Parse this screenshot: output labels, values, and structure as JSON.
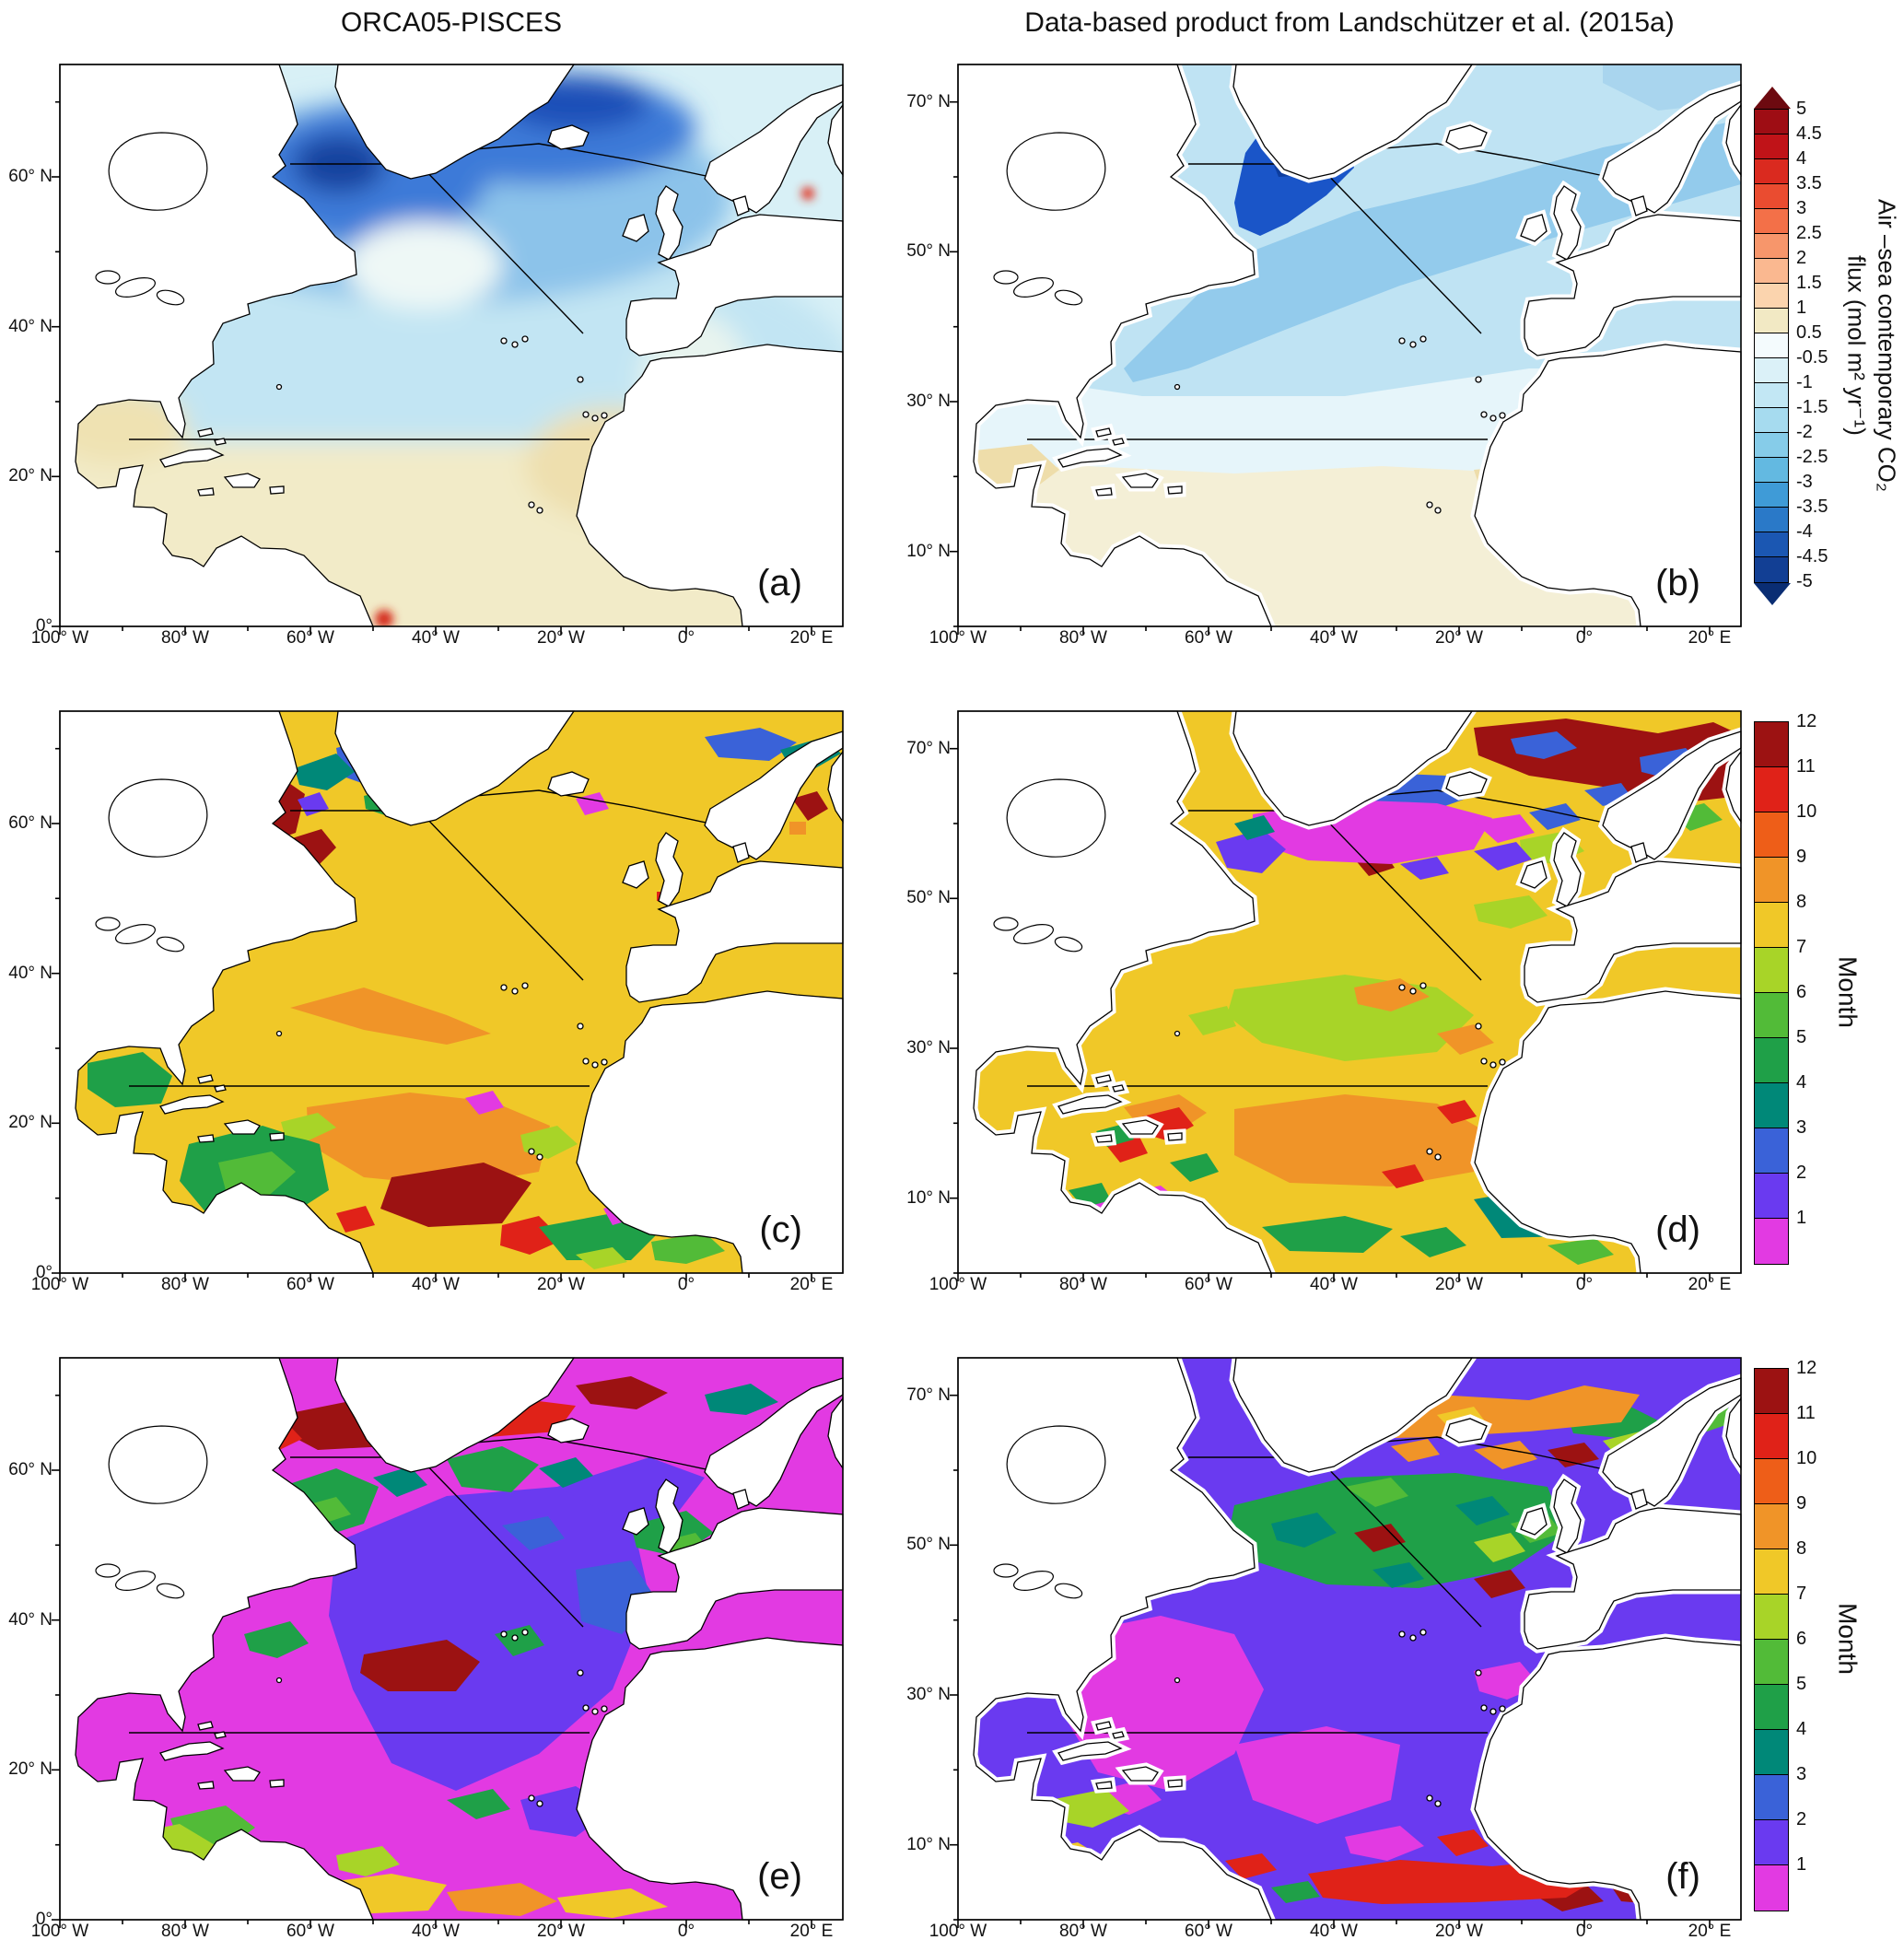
{
  "titles": {
    "left": "ORCA05-PISCES",
    "right": "Data-based product from Landschützer et al. (2015a)"
  },
  "axes": {
    "x_ticks": [
      "100° W",
      "80° W",
      "60° W",
      "40° W",
      "20° W",
      "0°",
      "20° E"
    ],
    "y_ticks_left": [
      "60° N",
      "40° N",
      "20° N",
      "0°"
    ],
    "y_ticks_right": [
      "70° N",
      "50° N",
      "30° N",
      "10° N"
    ]
  },
  "panels": {
    "a": {
      "label": "(a)"
    },
    "b": {
      "label": "(b)"
    },
    "c": {
      "label": "(c)"
    },
    "d": {
      "label": "(d)"
    },
    "e": {
      "label": "(e)"
    },
    "f": {
      "label": "(f)"
    }
  },
  "colorbars": {
    "flux": {
      "title": "Air –sea contemporary CO₂\nflux (mol m² yr⁻¹)",
      "tick_labels": [
        "5",
        "4.5",
        "4",
        "3.5",
        "3",
        "2.5",
        "2",
        "1.5",
        "1",
        "0.5",
        "-0.5",
        "-1",
        "-1.5",
        "-2",
        "-2.5",
        "-3",
        "-3.5",
        "-4",
        "-4.5",
        "-5"
      ],
      "cell_colors_top_to_bottom": [
        "#9e0d14",
        "#c01318",
        "#da2a1f",
        "#ea4c30",
        "#f37048",
        "#f7966b",
        "#fab890",
        "#fbd4ae",
        "#f2e9c4",
        "#f4fbfd",
        "#dbf1f8",
        "#c2e7f4",
        "#a6dbef",
        "#86cce9",
        "#63b9e1",
        "#3f9bd7",
        "#2a79c8",
        "#1b57b2",
        "#123f94"
      ],
      "arrow_top_color": "#6d0a10",
      "arrow_bottom_color": "#0a2d73"
    },
    "month": {
      "title": "Month",
      "tick_labels_top_to_bottom": [
        "12",
        "11",
        "10",
        "9",
        "8",
        "7",
        "6",
        "5",
        "4",
        "3",
        "2",
        "1"
      ],
      "cell_colors_top_to_bottom": [
        "#9c1212",
        "#e02218",
        "#ee5e18",
        "#f09428",
        "#f0c828",
        "#a8d428",
        "#52bb38",
        "#1fa048",
        "#008878",
        "#3a62d8",
        "#6a3af0",
        "#e23ae2"
      ]
    }
  }
}
